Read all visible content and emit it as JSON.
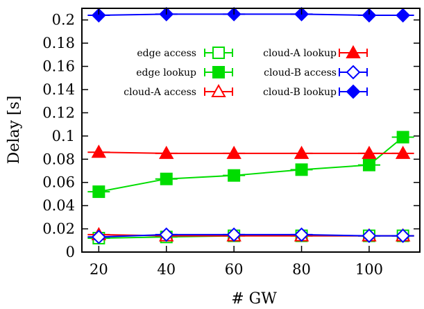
{
  "chart_data": {
    "type": "line",
    "title": "",
    "xlabel": "# GW",
    "ylabel": "Delay [s]",
    "xlim": [
      15,
      115
    ],
    "ylim": [
      0,
      0.21
    ],
    "xticks": [
      20,
      40,
      60,
      80,
      100
    ],
    "yticks": [
      0,
      0.02,
      0.04,
      0.06,
      0.08,
      0.1,
      0.12,
      0.14,
      0.16,
      0.18,
      0.2
    ],
    "ytick_labels": [
      "0",
      "0.02",
      "0.04",
      "0.06",
      "0.08",
      "0.1",
      "0.12",
      "0.14",
      "0.16",
      "0.18",
      "0.2"
    ],
    "grid": false,
    "legend_position": "inside-top",
    "x": [
      20,
      40,
      60,
      80,
      100,
      110
    ],
    "series": [
      {
        "name": "edge access",
        "color": "#00dd00",
        "marker": "open-square",
        "values": [
          0.012,
          0.013,
          0.014,
          0.014,
          0.014,
          0.014
        ]
      },
      {
        "name": "edge lookup",
        "color": "#00dd00",
        "marker": "filled-square",
        "values": [
          0.052,
          0.063,
          0.066,
          0.071,
          0.075,
          0.099
        ]
      },
      {
        "name": "cloud-A access",
        "color": "#ff0000",
        "marker": "open-triangle",
        "values": [
          0.015,
          0.014,
          0.014,
          0.014,
          0.014,
          0.014
        ]
      },
      {
        "name": "cloud-A lookup",
        "color": "#ff0000",
        "marker": "filled-triangle",
        "values": [
          0.086,
          0.085,
          0.085,
          0.085,
          0.085,
          0.085
        ]
      },
      {
        "name": "cloud-B access",
        "color": "#0000ff",
        "marker": "open-diamond",
        "values": [
          0.013,
          0.015,
          0.015,
          0.015,
          0.014,
          0.014
        ]
      },
      {
        "name": "cloud-B lookup",
        "color": "#0000ff",
        "marker": "filled-diamond",
        "values": [
          0.204,
          0.205,
          0.205,
          0.205,
          0.204,
          0.204
        ]
      }
    ]
  }
}
